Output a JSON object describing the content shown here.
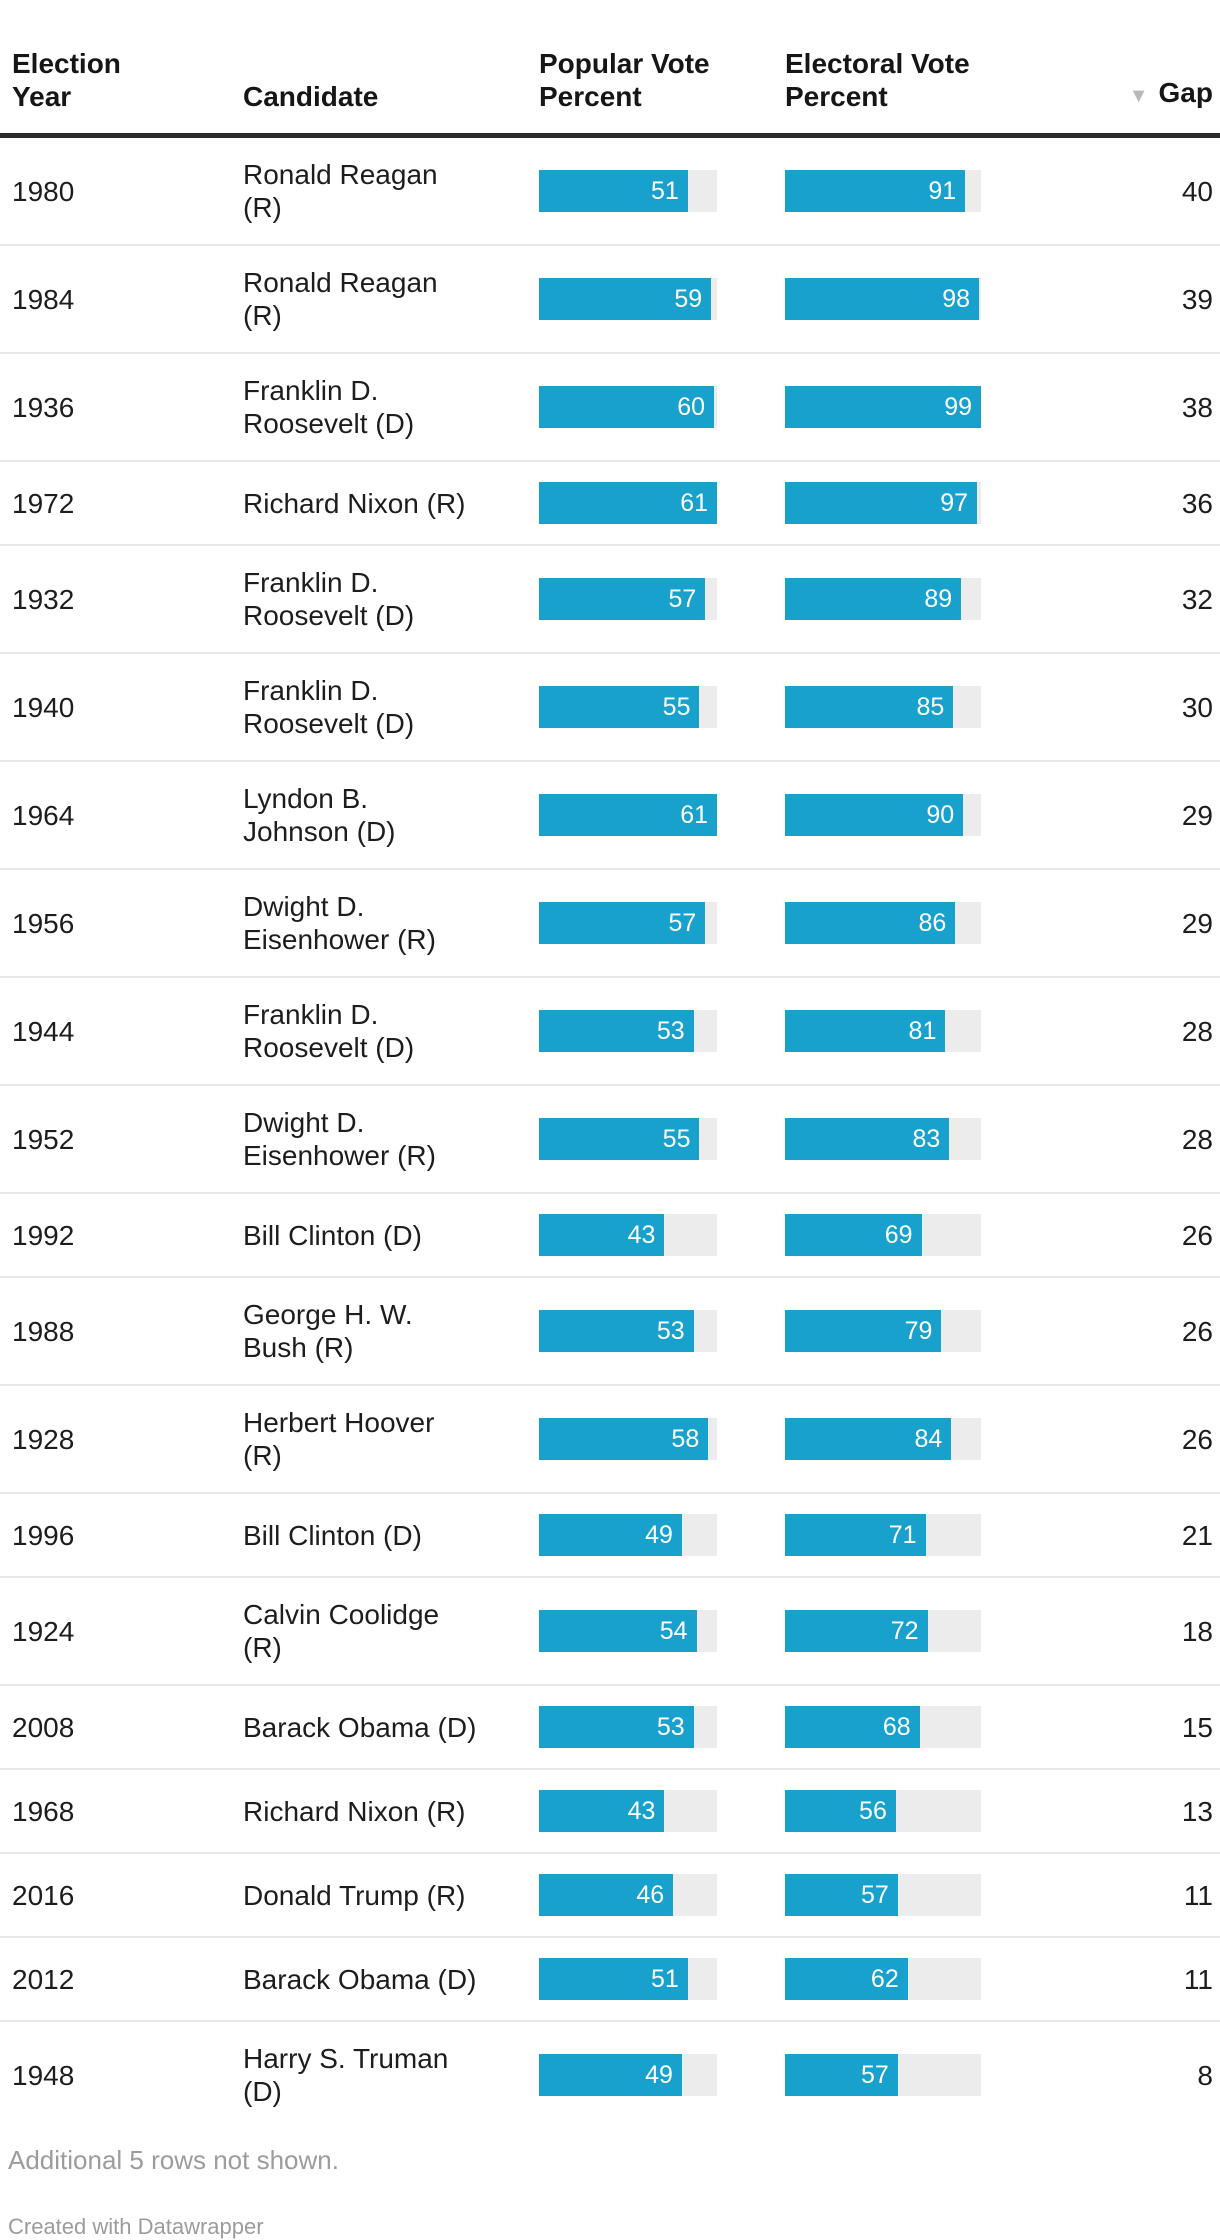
{
  "header": {
    "year": "Election\nYear",
    "candidate": "Candidate",
    "popular": "Popular Vote\nPercent",
    "electoral": "Electoral Vote\nPercent",
    "gap": "Gap",
    "sort_icon": "▼"
  },
  "chart_data": {
    "type": "table",
    "columns": [
      "Election Year",
      "Candidate",
      "Popular Vote Percent",
      "Electoral Vote Percent",
      "Gap"
    ],
    "sort": {
      "column": "Gap",
      "direction": "descending"
    },
    "bar_columns": {
      "popular": {
        "scale_max": 61,
        "bar_color": "#18a1cd",
        "track_color": "#ececec"
      },
      "electoral": {
        "scale_max": 99,
        "bar_color": "#18a1cd",
        "track_color": "#ececec"
      }
    },
    "rows": [
      {
        "year": "1980",
        "candidate": "Ronald Reagan\n(R)",
        "popular": 51,
        "electoral": 91,
        "gap": 40
      },
      {
        "year": "1984",
        "candidate": "Ronald Reagan\n(R)",
        "popular": 59,
        "electoral": 98,
        "gap": 39
      },
      {
        "year": "1936",
        "candidate": "Franklin D.\nRoosevelt (D)",
        "popular": 60,
        "electoral": 99,
        "gap": 38
      },
      {
        "year": "1972",
        "candidate": "Richard Nixon (R)",
        "popular": 61,
        "electoral": 97,
        "gap": 36
      },
      {
        "year": "1932",
        "candidate": "Franklin D.\nRoosevelt (D)",
        "popular": 57,
        "electoral": 89,
        "gap": 32
      },
      {
        "year": "1940",
        "candidate": "Franklin D.\nRoosevelt (D)",
        "popular": 55,
        "electoral": 85,
        "gap": 30
      },
      {
        "year": "1964",
        "candidate": "Lyndon B.\nJohnson (D)",
        "popular": 61,
        "electoral": 90,
        "gap": 29
      },
      {
        "year": "1956",
        "candidate": "Dwight D.\nEisenhower (R)",
        "popular": 57,
        "electoral": 86,
        "gap": 29
      },
      {
        "year": "1944",
        "candidate": "Franklin D.\nRoosevelt (D)",
        "popular": 53,
        "electoral": 81,
        "gap": 28
      },
      {
        "year": "1952",
        "candidate": "Dwight D.\nEisenhower (R)",
        "popular": 55,
        "electoral": 83,
        "gap": 28
      },
      {
        "year": "1992",
        "candidate": "Bill Clinton (D)",
        "popular": 43,
        "electoral": 69,
        "gap": 26
      },
      {
        "year": "1988",
        "candidate": "George H. W.\nBush (R)",
        "popular": 53,
        "electoral": 79,
        "gap": 26
      },
      {
        "year": "1928",
        "candidate": "Herbert Hoover\n(R)",
        "popular": 58,
        "electoral": 84,
        "gap": 26
      },
      {
        "year": "1996",
        "candidate": "Bill Clinton (D)",
        "popular": 49,
        "electoral": 71,
        "gap": 21
      },
      {
        "year": "1924",
        "candidate": "Calvin Coolidge\n(R)",
        "popular": 54,
        "electoral": 72,
        "gap": 18
      },
      {
        "year": "2008",
        "candidate": "Barack Obama (D)",
        "popular": 53,
        "electoral": 68,
        "gap": 15
      },
      {
        "year": "1968",
        "candidate": "Richard Nixon (R)",
        "popular": 43,
        "electoral": 56,
        "gap": 13
      },
      {
        "year": "2016",
        "candidate": "Donald Trump (R)",
        "popular": 46,
        "electoral": 57,
        "gap": 11
      },
      {
        "year": "2012",
        "candidate": "Barack Obama (D)",
        "popular": 51,
        "electoral": 62,
        "gap": 11
      },
      {
        "year": "1948",
        "candidate": "Harry S. Truman\n(D)",
        "popular": 49,
        "electoral": 57,
        "gap": 8
      }
    ]
  },
  "footer": {
    "note": "Additional 5 rows not shown.",
    "credit": "Created with Datawrapper"
  },
  "colors": {
    "bar": "#18a1cd",
    "bar_track": "#ececec",
    "text": "#1d1d1d",
    "muted": "#9c9c9c",
    "header_rule": "#2b2b2b",
    "row_separator": "#e7e7e7",
    "sort_icon": "#b9b9b9"
  }
}
